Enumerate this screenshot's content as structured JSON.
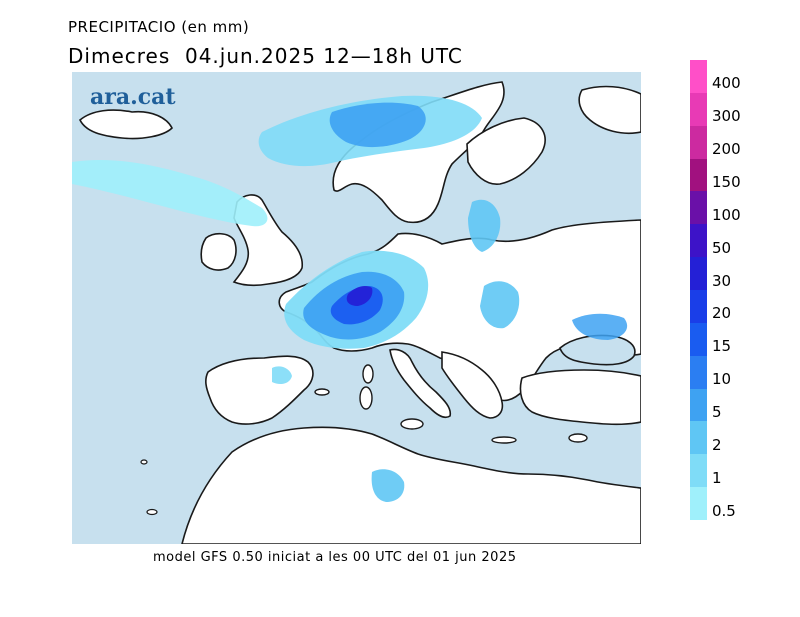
{
  "header": {
    "title": "PRECIPITACIO (en mm)",
    "date": "Dimecres  04.jun.2025 12—18h UTC"
  },
  "logo": "ara.cat",
  "footer": "model GFS 0.50 iniciat a les 00 UTC del 01 jun 2025",
  "colors": {
    "sea": "#c7e0ee",
    "land": "#ffffff",
    "coast": "#1a1a1a"
  },
  "legend": {
    "items": [
      {
        "label": "400",
        "color": "#ff4fc8"
      },
      {
        "label": "300",
        "color": "#e83ab5"
      },
      {
        "label": "200",
        "color": "#cc2aa0"
      },
      {
        "label": "150",
        "color": "#a1117f"
      },
      {
        "label": "100",
        "color": "#6a10a8"
      },
      {
        "label": "50",
        "color": "#3d13c8"
      },
      {
        "label": "30",
        "color": "#2420d6"
      },
      {
        "label": "20",
        "color": "#1a3ee8"
      },
      {
        "label": "15",
        "color": "#1a5cf0"
      },
      {
        "label": "10",
        "color": "#2b7ef2"
      },
      {
        "label": "5",
        "color": "#3ea2f2"
      },
      {
        "label": "2",
        "color": "#5fc6f4"
      },
      {
        "label": "1",
        "color": "#7fdcf7"
      },
      {
        "label": "0.5",
        "color": "#9ff0fb"
      }
    ]
  }
}
